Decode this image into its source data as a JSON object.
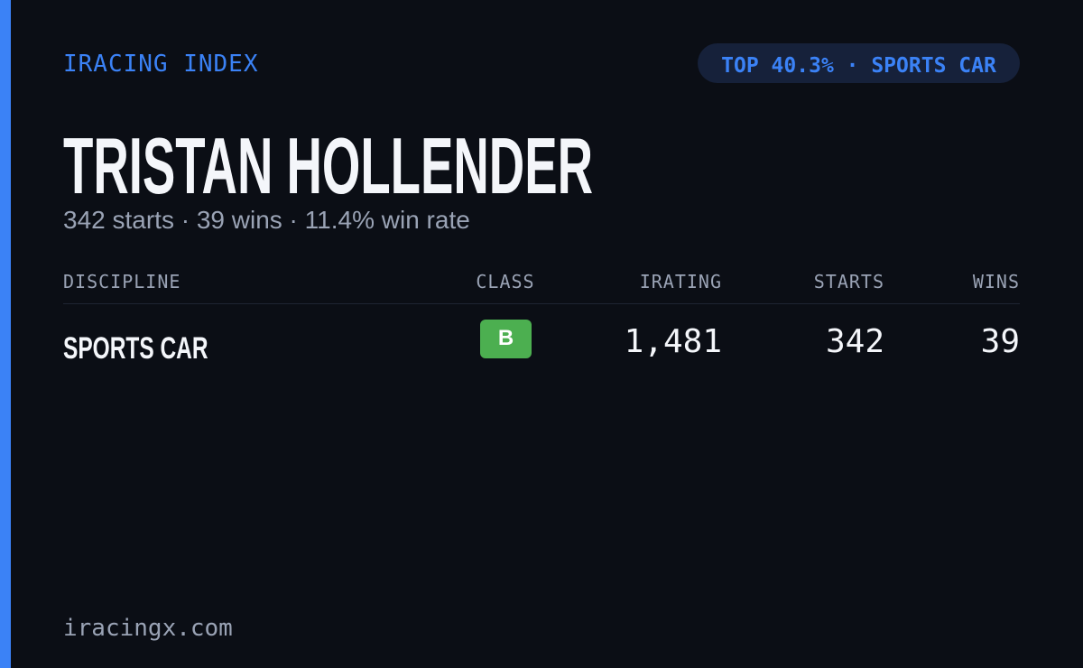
{
  "header": {
    "brand": "IRACING INDEX",
    "badge": "TOP 40.3% · SPORTS CAR"
  },
  "name": "TRISTAN HOLLENDER",
  "summary": "342 starts · 39 wins · 11.4% win rate",
  "table": {
    "columns": [
      "DISCIPLINE",
      "CLASS",
      "IRATING",
      "STARTS",
      "WINS"
    ],
    "rows": [
      [
        "SPORTS CAR",
        "B",
        "1,481",
        "342",
        "39"
      ]
    ]
  },
  "footer": "iracingx.com"
}
